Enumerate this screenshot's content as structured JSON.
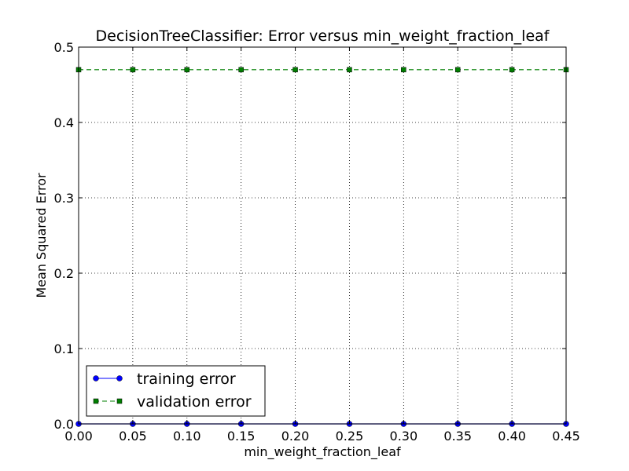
{
  "chart_data": {
    "type": "line",
    "title": "DecisionTreeClassifier: Error versus min_weight_fraction_leaf",
    "xlabel": "min_weight_fraction_leaf",
    "ylabel": "Mean Squared Error",
    "x": [
      0.0,
      0.05,
      0.1,
      0.15,
      0.2,
      0.25,
      0.3,
      0.35,
      0.4,
      0.45
    ],
    "xlim": [
      0.0,
      0.45
    ],
    "ylim": [
      0.0,
      0.5
    ],
    "xticks": [
      "0.00",
      "0.05",
      "0.10",
      "0.15",
      "0.20",
      "0.25",
      "0.30",
      "0.35",
      "0.40",
      "0.45"
    ],
    "yticks": [
      "0.0",
      "0.1",
      "0.2",
      "0.3",
      "0.4",
      "0.5"
    ],
    "grid": true,
    "legend_position": "lower-left",
    "series": [
      {
        "name": "training error",
        "values": [
          0.0,
          0.0,
          0.0,
          0.0,
          0.0,
          0.0,
          0.0,
          0.0,
          0.0,
          0.0
        ],
        "color": "#0000ff",
        "marker": "circle",
        "linestyle": "solid"
      },
      {
        "name": "validation error",
        "values": [
          0.47,
          0.47,
          0.47,
          0.47,
          0.47,
          0.47,
          0.47,
          0.47,
          0.47,
          0.47
        ],
        "color": "#007f00",
        "marker": "square",
        "linestyle": "dashed"
      }
    ]
  }
}
